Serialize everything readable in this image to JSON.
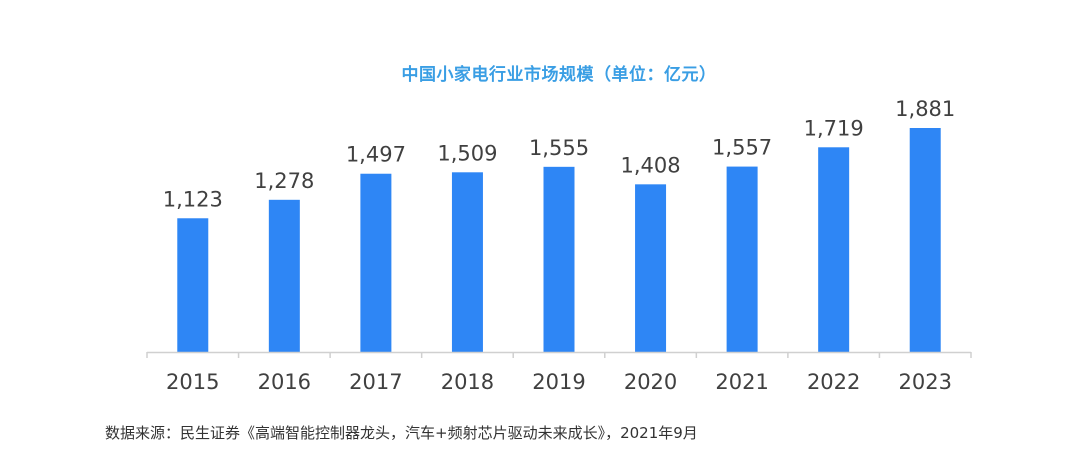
{
  "chart_data": {
    "type": "bar",
    "title": "中国小家电行业市场规模（单位：亿元）",
    "categories": [
      "2015",
      "2016",
      "2017",
      "2018",
      "2019",
      "2020",
      "2021",
      "2022",
      "2023"
    ],
    "values": [
      1123,
      1278,
      1497,
      1509,
      1555,
      1408,
      1557,
      1719,
      1881
    ],
    "value_labels": [
      "1,123",
      "1,278",
      "1,497",
      "1,509",
      "1,555",
      "1,408",
      "1,557",
      "1,719",
      "1,881"
    ],
    "xlabel": "",
    "ylabel": "",
    "ylim": [
      0,
      1881
    ],
    "grid": false,
    "legend": "none",
    "bar_color": "#2e86f5",
    "title_color": "#3a9ee4"
  },
  "source_note": "数据来源：民生证券《高端智能控制器龙头，汽车+频射芯片驱动未来成长》，2021年9月"
}
